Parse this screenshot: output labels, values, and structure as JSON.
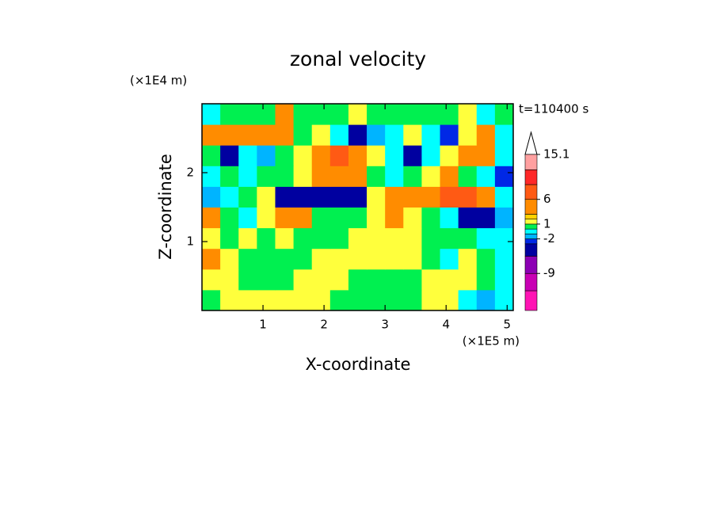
{
  "chart_data": {
    "type": "contour",
    "title": "zonal velocity",
    "annotation": "t=110400 s",
    "x_label": "X-coordinate",
    "y_label": "Z-coordinate",
    "x_unit": "(×1E5 m)",
    "y_unit": "(×1E4 m)",
    "xlim": [
      0,
      5.1
    ],
    "ylim": [
      0,
      3
    ],
    "xticks": [
      1,
      2,
      3,
      4,
      5
    ],
    "yticks": [
      1,
      2
    ],
    "xbins": [
      0,
      0.3,
      0.6,
      0.9,
      1.2,
      1.5,
      1.8,
      2.1,
      2.4,
      2.7,
      3,
      3.3,
      3.6,
      3.9,
      4.2,
      4.5,
      4.8,
      5.1
    ],
    "ybins": [
      0,
      0.3,
      0.6,
      0.9,
      1.2,
      1.5,
      1.8,
      2.1,
      2.4,
      2.7,
      3
    ],
    "z": [
      [
        0.5,
        1.5,
        1.5,
        1.5,
        1.5,
        1.5,
        1.5,
        0.5,
        0.5,
        0.5,
        0.5,
        0.5,
        1.5,
        1.5,
        -1,
        -2,
        -1
      ],
      [
        1.5,
        1.5,
        0.5,
        0.5,
        0.5,
        1.5,
        1.5,
        1.5,
        0.5,
        0.5,
        0.5,
        0.5,
        1.5,
        1.5,
        1.5,
        0.5,
        -1
      ],
      [
        3,
        1.5,
        0.5,
        0.5,
        0.5,
        0.5,
        1.5,
        1.5,
        1.5,
        1.5,
        1.5,
        1.5,
        0.5,
        -1,
        1.5,
        0.5,
        -1
      ],
      [
        1.5,
        0.5,
        1.5,
        0.5,
        1.5,
        0.5,
        0.5,
        0.5,
        1.5,
        1.5,
        1.5,
        1.5,
        0.5,
        0.5,
        0.5,
        -1,
        -1
      ],
      [
        3,
        0.5,
        -1,
        1.5,
        4,
        3,
        0.5,
        0.5,
        0.5,
        1.5,
        3,
        1.5,
        0.5,
        -1,
        -5,
        -4,
        -2
      ],
      [
        -2,
        -1,
        0.5,
        1.5,
        -4,
        -5,
        -5,
        -5,
        -4,
        1.5,
        3,
        4,
        4,
        6,
        7,
        3,
        -1
      ],
      [
        -1,
        0.5,
        -1,
        0.5,
        0.5,
        1.5,
        4,
        5,
        4,
        0.5,
        -1,
        0.5,
        1.5,
        3,
        0.5,
        -1,
        -3
      ],
      [
        0.5,
        -4,
        -1,
        -2,
        0.5,
        1.5,
        4,
        6,
        4,
        1.5,
        -1,
        -4,
        -1,
        1.5,
        3,
        4,
        -1
      ],
      [
        4,
        4.5,
        4,
        3,
        4,
        0.5,
        1.5,
        -1,
        -4,
        -2,
        -1,
        1.5,
        -1,
        -3,
        1.5,
        3,
        -1
      ],
      [
        -1,
        0.5,
        0.5,
        0.5,
        3,
        0.5,
        0.5,
        0.5,
        1.5,
        0.5,
        0.5,
        0.5,
        0.5,
        0.5,
        1.5,
        -1,
        0.5
      ]
    ],
    "colorbar": {
      "levels": [
        -16.5,
        -12.5,
        -9,
        -5.5,
        -3,
        -2,
        -1,
        0,
        1,
        2,
        3,
        6,
        9,
        12,
        15.1
      ],
      "colors": [
        "#ff14b4",
        "#c800b4",
        "#8c00b4",
        "#0000a0",
        "#0028e6",
        "#00b4ff",
        "#00ffff",
        "#00f050",
        "#ffff3c",
        "#ffd200",
        "#ff8c00",
        "#ff5a14",
        "#ff2828",
        "#ffa0a0"
      ],
      "ticks": [
        15.1,
        6,
        1,
        -2,
        -9
      ]
    }
  }
}
